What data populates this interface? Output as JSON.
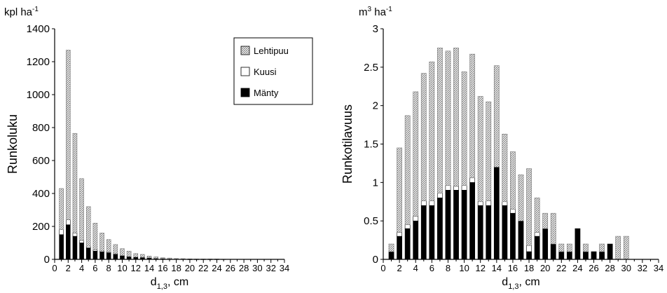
{
  "chart_data": [
    {
      "type": "bar",
      "stacked": true,
      "unit_label": "kpl ha",
      "unit_exp": "-1",
      "ylabel": "Runkoluku",
      "xlabel_main": "d",
      "xlabel_sub": "1,3",
      "xlabel_unit": ", cm",
      "xlim": [
        0,
        34
      ],
      "ylim": [
        0,
        1400
      ],
      "yticks": [
        0,
        200,
        400,
        600,
        800,
        1000,
        1200,
        1400
      ],
      "xticks": [
        0,
        2,
        4,
        6,
        8,
        10,
        12,
        14,
        16,
        18,
        20,
        22,
        24,
        26,
        28,
        30,
        32,
        34
      ],
      "x": [
        1,
        2,
        3,
        4,
        5,
        6,
        7,
        8,
        9,
        10,
        11,
        12,
        13,
        14,
        15,
        16,
        17,
        18,
        19,
        20,
        21,
        22,
        23,
        24,
        25,
        26,
        27,
        28,
        29,
        30,
        31,
        32,
        33,
        34
      ],
      "series": [
        {
          "name": "Mänty",
          "values": [
            150,
            210,
            140,
            100,
            70,
            50,
            45,
            40,
            30,
            20,
            15,
            12,
            10,
            8,
            5,
            4,
            3,
            2,
            2,
            1,
            1,
            1,
            1,
            1,
            0,
            0,
            0,
            0,
            0,
            0,
            0,
            0,
            0,
            0
          ]
        },
        {
          "name": "Kuusi",
          "values": [
            30,
            30,
            20,
            15,
            10,
            8,
            6,
            5,
            4,
            3,
            2,
            2,
            2,
            1,
            1,
            1,
            0,
            0,
            0,
            0,
            0,
            0,
            0,
            0,
            0,
            0,
            0,
            0,
            0,
            0,
            0,
            0,
            0,
            0
          ]
        },
        {
          "name": "Lehtipuu",
          "values": [
            250,
            1030,
            605,
            375,
            240,
            162,
            109,
            75,
            56,
            42,
            33,
            21,
            18,
            11,
            9,
            5,
            5,
            3,
            2,
            2,
            1,
            1,
            1,
            1,
            1,
            0,
            0,
            0,
            0,
            0,
            0,
            0,
            0,
            0
          ]
        }
      ],
      "legend": {
        "position": "top-right",
        "entries": [
          "Lehtipuu",
          "Kuusi",
          "Mänty"
        ]
      },
      "grid": false
    },
    {
      "type": "bar",
      "stacked": true,
      "unit_label": "m",
      "unit_sup1": "3",
      "unit_label2": " ha",
      "unit_exp": "-1",
      "ylabel": "Runkotilavuus",
      "xlabel_main": "d",
      "xlabel_sub": "1,3",
      "xlabel_unit": ", cm",
      "xlim": [
        0,
        34
      ],
      "ylim": [
        0,
        3
      ],
      "yticks": [
        "0",
        "0.5",
        "1",
        "1.5",
        "2",
        "2.5",
        "3"
      ],
      "xticks": [
        0,
        2,
        4,
        6,
        8,
        10,
        12,
        14,
        16,
        18,
        20,
        22,
        24,
        26,
        28,
        30,
        32,
        34
      ],
      "x": [
        1,
        2,
        3,
        4,
        5,
        6,
        7,
        8,
        9,
        10,
        11,
        12,
        13,
        14,
        15,
        16,
        17,
        18,
        19,
        20,
        21,
        22,
        23,
        24,
        25,
        26,
        27,
        28,
        29,
        30,
        31,
        32,
        33,
        34
      ],
      "series": [
        {
          "name": "Mänty",
          "values": [
            0.1,
            0.3,
            0.4,
            0.5,
            0.7,
            0.7,
            0.8,
            0.9,
            0.9,
            0.9,
            1.0,
            0.7,
            0.7,
            1.2,
            0.7,
            0.6,
            0.5,
            0.1,
            0.3,
            0.4,
            0.2,
            0.1,
            0.1,
            0.4,
            0.1,
            0.1,
            0.1,
            0.2,
            0,
            0,
            0,
            0,
            0,
            0
          ]
        },
        {
          "name": "Kuusi",
          "values": [
            0,
            0.05,
            0.05,
            0.06,
            0.06,
            0.06,
            0.06,
            0.06,
            0.05,
            0.06,
            0.06,
            0.05,
            0.06,
            0,
            0.05,
            0.05,
            0,
            0.08,
            0.05,
            0,
            0,
            0,
            0,
            0,
            0,
            0,
            0,
            0,
            0,
            0,
            0,
            0,
            0,
            0
          ]
        },
        {
          "name": "Lehtipuu",
          "values": [
            0.1,
            1.1,
            1.42,
            1.62,
            1.66,
            1.81,
            1.89,
            1.75,
            1.8,
            1.48,
            1.61,
            1.37,
            1.29,
            1.32,
            0.88,
            0.75,
            0.6,
            1.0,
            0.45,
            0.2,
            0.4,
            0.1,
            0.1,
            0,
            0.1,
            0,
            0.1,
            0,
            0.3,
            0.3,
            0,
            0,
            0,
            0
          ]
        }
      ],
      "grid": false
    }
  ]
}
